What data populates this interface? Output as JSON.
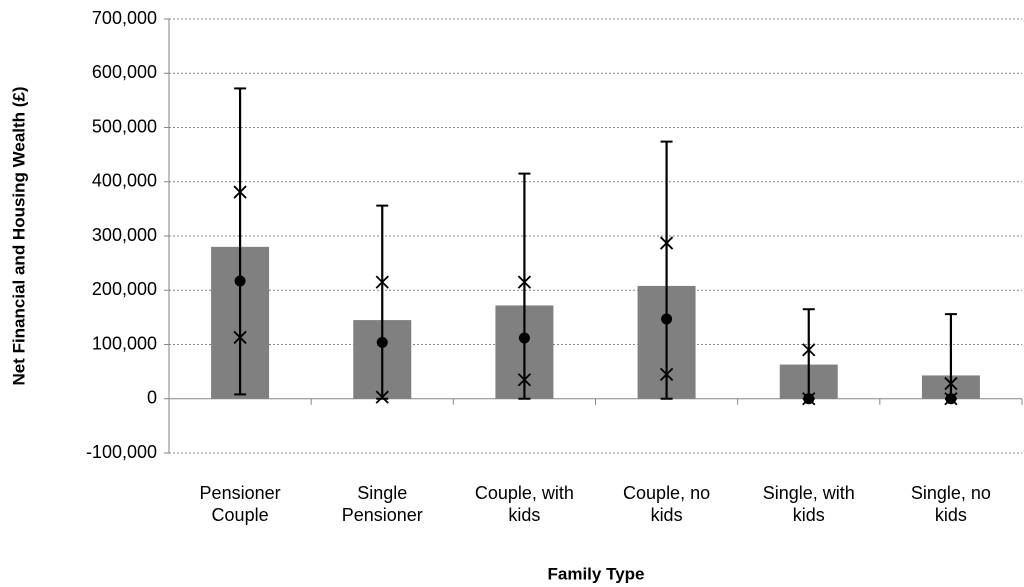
{
  "chart_data": {
    "type": "bar",
    "x_label": "Family Type",
    "y_label": "Net Financial and Housing Wealth (£)",
    "categories": [
      "Pensioner Couple",
      "Single Pensioner",
      "Couple, with kids",
      "Couple, no kids",
      "Single, with kids",
      "Single, no kids"
    ],
    "series": [
      {
        "marker": "bar",
        "color": "#808080",
        "values": [
          280000,
          145000,
          172000,
          208000,
          63000,
          43000
        ]
      },
      {
        "marker": "circle",
        "color": "#000000",
        "values": [
          217000,
          104000,
          112000,
          147000,
          0,
          0
        ]
      },
      {
        "marker": "cross",
        "color": "#000000",
        "values": [
          113000,
          3000,
          35000,
          45000,
          0,
          0
        ]
      },
      {
        "marker": "cross",
        "color": "#000000",
        "values": [
          381000,
          215000,
          215000,
          287000,
          90000,
          28000
        ]
      }
    ],
    "whiskers": {
      "color": "#000000",
      "low": [
        8000,
        0,
        0,
        0,
        0,
        0
      ],
      "high": [
        572000,
        356000,
        415000,
        474000,
        165000,
        156000
      ]
    },
    "ylim": [
      -100000,
      700000
    ],
    "yticks": [
      {
        "value": -100000,
        "label": "-100,000"
      },
      0,
      {
        "value": 100000,
        "label": "100,000"
      },
      {
        "value": 200000,
        "label": "200,000"
      },
      {
        "value": 300000,
        "label": "300,000"
      },
      {
        "value": 400000,
        "label": "400,000"
      },
      {
        "value": 500000,
        "label": "500,000"
      },
      {
        "value": 600000,
        "label": "600,000"
      },
      {
        "value": 700000,
        "label": "700,000"
      }
    ],
    "grid": true
  }
}
